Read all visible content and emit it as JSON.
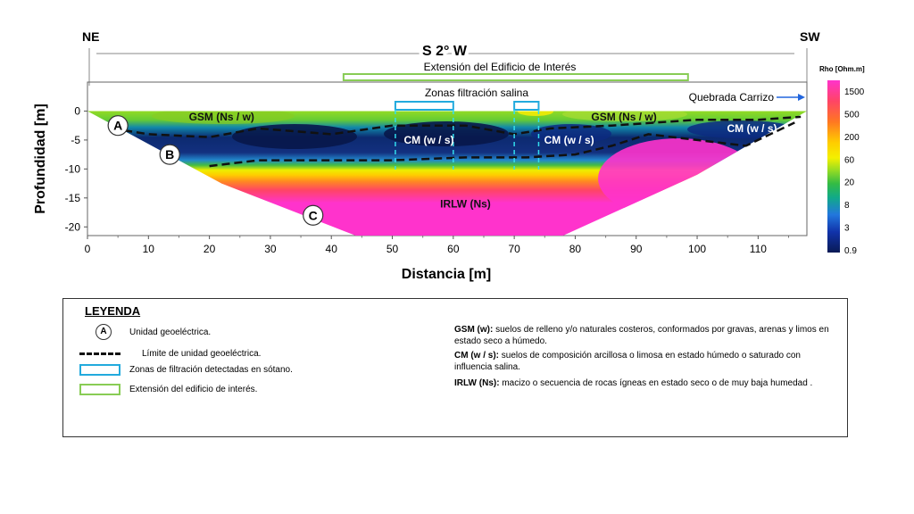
{
  "header": {
    "left": "NE",
    "right": "SW",
    "bearing": "S 2° W",
    "building": "Extensión del Edificio de Interés",
    "filtration": "Zonas filtración salina",
    "creek": "Quebrada Carrizo"
  },
  "chart_data": {
    "type": "heatmap",
    "title": "",
    "xlabel": "Distancia [m]",
    "ylabel": "Profundidad [m]",
    "xlim": [
      0,
      118
    ],
    "ylim": [
      -21.5,
      5
    ],
    "xticks": [
      0,
      10,
      20,
      30,
      40,
      50,
      60,
      70,
      80,
      90,
      100,
      110
    ],
    "yticks": [
      0,
      -5,
      -10,
      -15,
      -20
    ],
    "colorbar": {
      "title": "Rho [Ohm.m]",
      "labels": [
        "1500",
        "500",
        "200",
        "60",
        "20",
        "8",
        "3",
        "0.9"
      ],
      "colors": [
        "#ff33cc",
        "#ff4466",
        "#ff7722",
        "#ffcc00",
        "#f4f000",
        "#99dd22",
        "#33bb44",
        "#11aa88",
        "#2277dd",
        "#1133aa",
        "#091a55"
      ]
    },
    "section_profile": {
      "top_x": [
        0,
        118
      ],
      "top_y": 0,
      "bottom": [
        [
          0,
          0
        ],
        [
          22,
          -12.5
        ],
        [
          44,
          -21.5
        ],
        [
          78,
          -21.5
        ],
        [
          100,
          -11
        ],
        [
          118,
          0
        ]
      ]
    },
    "zones": [
      {
        "label": "GSM (Ns / w)",
        "x": 22,
        "y": -1,
        "unit": "A"
      },
      {
        "label": "GSM (Ns / w)",
        "x": 88,
        "y": -1
      },
      {
        "label": "CM (w / s)",
        "x": 56,
        "y": -5
      },
      {
        "label": "CM (w / s)",
        "x": 79,
        "y": -5
      },
      {
        "label": "CM (w / s)",
        "x": 109,
        "y": -3
      },
      {
        "label": "IRLW (Ns)",
        "x": 62,
        "y": -16
      }
    ],
    "unit_markers": [
      {
        "label": "A",
        "x": 5,
        "y": -2.5
      },
      {
        "label": "B",
        "x": 13.5,
        "y": -7.5
      },
      {
        "label": "C",
        "x": 37,
        "y": -18
      }
    ],
    "upper_boundary": [
      [
        4,
        -3
      ],
      [
        10,
        -4
      ],
      [
        20,
        -4.5
      ],
      [
        28,
        -3
      ],
      [
        40,
        -4
      ],
      [
        50,
        -2.5
      ],
      [
        62,
        -2.5
      ],
      [
        70,
        -4
      ],
      [
        76,
        -3
      ],
      [
        86,
        -2.5
      ],
      [
        100,
        -1.5
      ],
      [
        110,
        -1.5
      ],
      [
        117,
        -1
      ]
    ],
    "lower_boundary": [
      [
        20,
        -9.5
      ],
      [
        28,
        -8.5
      ],
      [
        40,
        -8.5
      ],
      [
        50,
        -8.5
      ],
      [
        62,
        -8
      ],
      [
        72,
        -8
      ],
      [
        80,
        -7.5
      ],
      [
        86,
        -6
      ],
      [
        92,
        -4
      ],
      [
        100,
        -5
      ],
      [
        108,
        -6
      ],
      [
        116,
        -2
      ]
    ],
    "filtration_zones_x": [
      [
        50.5,
        60
      ],
      [
        70,
        74
      ]
    ],
    "building_extent_x": [
      42,
      98.5
    ]
  },
  "legend": {
    "title": "LEYENDA",
    "items": [
      {
        "symbol": "A",
        "text": "Unidad geoeléctrica."
      },
      {
        "symbol": "dash",
        "text": "Límite de unidad geoeléctrica."
      },
      {
        "symbol": "cyan-box",
        "text": "Zonas de filtración detectadas en sótano."
      },
      {
        "symbol": "green-box",
        "text": "Extensión del edificio de interés."
      }
    ],
    "descriptions": [
      {
        "key": "GSM (w):",
        "text": "suelos de relleno y/o naturales costeros, conformados por gravas, arenas y limos en estado seco a húmedo."
      },
      {
        "key": "CM (w / s):",
        "text": "suelos de composición arcillosa o limosa en estado húmedo o saturado con influencia salina."
      },
      {
        "key": "IRLW (Ns):",
        "text": "macizo o secuencia de rocas ígneas en estado seco o de muy baja humedad ."
      }
    ],
    "colors": {
      "cyan": "#22aadd",
      "green": "#88cc55"
    }
  }
}
